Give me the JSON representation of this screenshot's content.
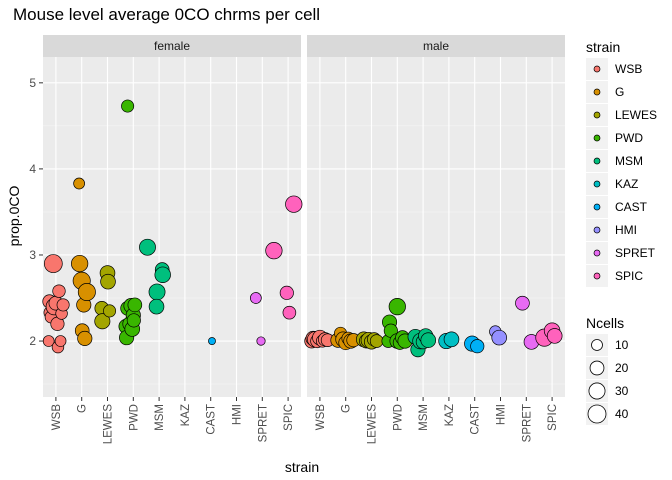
{
  "chart_data": {
    "type": "scatter",
    "title": "Mouse level average 0CO chrms per cell",
    "xlabel": "strain",
    "ylabel": "prop.0CO",
    "categories": [
      "WSB",
      "G",
      "LEWES",
      "PWD",
      "MSM",
      "KAZ",
      "CAST",
      "HMI",
      "SPRET",
      "SPIC"
    ],
    "ylim": [
      1.35,
      5.3
    ],
    "y_ticks": [
      2,
      3,
      4,
      5
    ],
    "grid": true,
    "legend_position": "right",
    "panels": [
      {
        "label": "female",
        "points": [
          {
            "strain": "WSB",
            "dx": -0.28,
            "y": 2.0,
            "n": 10
          },
          {
            "strain": "WSB",
            "dx": -0.25,
            "y": 2.46,
            "n": 18
          },
          {
            "strain": "WSB",
            "dx": -0.22,
            "y": 2.33,
            "n": 15
          },
          {
            "strain": "WSB",
            "dx": -0.18,
            "y": 2.28,
            "n": 14
          },
          {
            "strain": "WSB",
            "dx": -0.1,
            "y": 2.9,
            "n": 40
          },
          {
            "strain": "WSB",
            "dx": -0.06,
            "y": 2.4,
            "n": 32
          },
          {
            "strain": "WSB",
            "dx": 0.0,
            "y": 2.44,
            "n": 20
          },
          {
            "strain": "WSB",
            "dx": 0.06,
            "y": 2.2,
            "n": 18
          },
          {
            "strain": "WSB",
            "dx": 0.08,
            "y": 1.93,
            "n": 12
          },
          {
            "strain": "WSB",
            "dx": 0.12,
            "y": 2.58,
            "n": 15
          },
          {
            "strain": "WSB",
            "dx": 0.18,
            "y": 2.0,
            "n": 10
          },
          {
            "strain": "WSB",
            "dx": 0.22,
            "y": 2.32,
            "n": 12
          },
          {
            "strain": "WSB",
            "dx": 0.28,
            "y": 2.42,
            "n": 14
          },
          {
            "strain": "G",
            "dx": -0.1,
            "y": 3.83,
            "n": 10
          },
          {
            "strain": "G",
            "dx": -0.08,
            "y": 2.9,
            "n": 32
          },
          {
            "strain": "G",
            "dx": 0.0,
            "y": 2.7,
            "n": 36
          },
          {
            "strain": "G",
            "dx": 0.02,
            "y": 2.12,
            "n": 20
          },
          {
            "strain": "G",
            "dx": 0.08,
            "y": 2.42,
            "n": 22
          },
          {
            "strain": "G",
            "dx": 0.12,
            "y": 2.03,
            "n": 22
          },
          {
            "strain": "G",
            "dx": 0.2,
            "y": 2.57,
            "n": 36
          },
          {
            "strain": "LEWES",
            "dx": -0.22,
            "y": 2.38,
            "n": 20
          },
          {
            "strain": "LEWES",
            "dx": -0.2,
            "y": 2.23,
            "n": 26
          },
          {
            "strain": "LEWES",
            "dx": 0.0,
            "y": 2.79,
            "n": 24
          },
          {
            "strain": "LEWES",
            "dx": 0.02,
            "y": 2.69,
            "n": 24
          },
          {
            "strain": "LEWES",
            "dx": 0.08,
            "y": 2.35,
            "n": 14
          },
          {
            "strain": "PWD",
            "dx": -0.22,
            "y": 4.73,
            "n": 14
          },
          {
            "strain": "PWD",
            "dx": -0.28,
            "y": 2.17,
            "n": 22
          },
          {
            "strain": "PWD",
            "dx": -0.26,
            "y": 2.04,
            "n": 22
          },
          {
            "strain": "PWD",
            "dx": -0.22,
            "y": 2.38,
            "n": 20
          },
          {
            "strain": "PWD",
            "dx": -0.12,
            "y": 2.2,
            "n": 24
          },
          {
            "strain": "PWD",
            "dx": -0.08,
            "y": 2.41,
            "n": 24
          },
          {
            "strain": "PWD",
            "dx": -0.04,
            "y": 2.14,
            "n": 24
          },
          {
            "strain": "PWD",
            "dx": 0.0,
            "y": 2.3,
            "n": 22
          },
          {
            "strain": "PWD",
            "dx": 0.02,
            "y": 2.24,
            "n": 18
          },
          {
            "strain": "PWD",
            "dx": 0.06,
            "y": 2.42,
            "n": 20
          },
          {
            "strain": "MSM",
            "dx": -0.45,
            "y": 3.09,
            "n": 30
          },
          {
            "strain": "MSM",
            "dx": -0.08,
            "y": 2.57,
            "n": 30
          },
          {
            "strain": "MSM",
            "dx": -0.1,
            "y": 2.4,
            "n": 24
          },
          {
            "strain": "MSM",
            "dx": 0.12,
            "y": 2.83,
            "n": 20
          },
          {
            "strain": "MSM",
            "dx": 0.14,
            "y": 2.77,
            "n": 28
          },
          {
            "strain": "CAST",
            "dx": 0.05,
            "y": 2.0,
            "n": 2
          },
          {
            "strain": "SPRET",
            "dx": -0.25,
            "y": 2.5,
            "n": 10
          },
          {
            "strain": "SPRET",
            "dx": -0.05,
            "y": 2.0,
            "n": 4
          },
          {
            "strain": "SPIC",
            "dx": -0.55,
            "y": 3.05,
            "n": 32
          },
          {
            "strain": "SPIC",
            "dx": -0.05,
            "y": 2.56,
            "n": 18
          },
          {
            "strain": "SPIC",
            "dx": 0.05,
            "y": 2.33,
            "n": 16
          },
          {
            "strain": "SPIC",
            "dx": 0.22,
            "y": 3.59,
            "n": 32
          }
        ]
      },
      {
        "label": "male",
        "points": [
          {
            "strain": "WSB",
            "dx": -0.32,
            "y": 2.0,
            "n": 20
          },
          {
            "strain": "WSB",
            "dx": -0.26,
            "y": 2.03,
            "n": 22
          },
          {
            "strain": "WSB",
            "dx": -0.18,
            "y": 2.02,
            "n": 28
          },
          {
            "strain": "WSB",
            "dx": -0.1,
            "y": 2.0,
            "n": 18
          },
          {
            "strain": "WSB",
            "dx": 0.0,
            "y": 2.04,
            "n": 24
          },
          {
            "strain": "WSB",
            "dx": 0.1,
            "y": 2.0,
            "n": 14
          },
          {
            "strain": "WSB",
            "dx": 0.2,
            "y": 2.02,
            "n": 18
          },
          {
            "strain": "WSB",
            "dx": 0.3,
            "y": 2.01,
            "n": 16
          },
          {
            "strain": "G",
            "dx": -0.3,
            "y": 2.01,
            "n": 22
          },
          {
            "strain": "G",
            "dx": -0.2,
            "y": 2.09,
            "n": 14
          },
          {
            "strain": "G",
            "dx": -0.1,
            "y": 2.02,
            "n": 24
          },
          {
            "strain": "G",
            "dx": 0.0,
            "y": 1.98,
            "n": 20
          },
          {
            "strain": "G",
            "dx": 0.1,
            "y": 2.03,
            "n": 16
          },
          {
            "strain": "G",
            "dx": 0.2,
            "y": 2.0,
            "n": 22
          },
          {
            "strain": "G",
            "dx": 0.3,
            "y": 2.01,
            "n": 18
          },
          {
            "strain": "LEWES",
            "dx": -0.3,
            "y": 2.02,
            "n": 24
          },
          {
            "strain": "LEWES",
            "dx": -0.2,
            "y": 2.0,
            "n": 20
          },
          {
            "strain": "LEWES",
            "dx": -0.1,
            "y": 2.01,
            "n": 28
          },
          {
            "strain": "LEWES",
            "dx": 0.0,
            "y": 1.99,
            "n": 22
          },
          {
            "strain": "LEWES",
            "dx": 0.1,
            "y": 2.02,
            "n": 18
          },
          {
            "strain": "LEWES",
            "dx": 0.2,
            "y": 2.0,
            "n": 16
          },
          {
            "strain": "PWD",
            "dx": -0.35,
            "y": 2.0,
            "n": 16
          },
          {
            "strain": "PWD",
            "dx": -0.3,
            "y": 2.22,
            "n": 22
          },
          {
            "strain": "PWD",
            "dx": -0.25,
            "y": 2.12,
            "n": 18
          },
          {
            "strain": "PWD",
            "dx": 0.0,
            "y": 2.4,
            "n": 32
          },
          {
            "strain": "PWD",
            "dx": 0.0,
            "y": 2.0,
            "n": 24
          },
          {
            "strain": "PWD",
            "dx": 0.1,
            "y": 1.98,
            "n": 18
          },
          {
            "strain": "PWD",
            "dx": 0.2,
            "y": 2.04,
            "n": 20
          },
          {
            "strain": "PWD",
            "dx": 0.3,
            "y": 2.0,
            "n": 22
          },
          {
            "strain": "MSM",
            "dx": -0.3,
            "y": 2.05,
            "n": 24
          },
          {
            "strain": "MSM",
            "dx": -0.2,
            "y": 1.9,
            "n": 22
          },
          {
            "strain": "MSM",
            "dx": -0.1,
            "y": 2.0,
            "n": 28
          },
          {
            "strain": "MSM",
            "dx": 0.0,
            "y": 1.99,
            "n": 20
          },
          {
            "strain": "MSM",
            "dx": 0.1,
            "y": 2.06,
            "n": 22
          },
          {
            "strain": "MSM",
            "dx": 0.2,
            "y": 2.01,
            "n": 24
          },
          {
            "strain": "KAZ",
            "dx": -0.1,
            "y": 2.0,
            "n": 26
          },
          {
            "strain": "KAZ",
            "dx": 0.1,
            "y": 2.02,
            "n": 24
          },
          {
            "strain": "CAST",
            "dx": -0.1,
            "y": 1.97,
            "n": 26
          },
          {
            "strain": "CAST",
            "dx": 0.1,
            "y": 1.94,
            "n": 18
          },
          {
            "strain": "HMI",
            "dx": -0.2,
            "y": 2.11,
            "n": 12
          },
          {
            "strain": "HMI",
            "dx": -0.05,
            "y": 2.04,
            "n": 24
          },
          {
            "strain": "SPRET",
            "dx": -0.15,
            "y": 2.44,
            "n": 20
          },
          {
            "strain": "SPRET",
            "dx": 0.2,
            "y": 1.99,
            "n": 24
          },
          {
            "strain": "SPIC",
            "dx": -0.3,
            "y": 2.04,
            "n": 36
          },
          {
            "strain": "SPIC",
            "dx": 0.0,
            "y": 2.12,
            "n": 28
          },
          {
            "strain": "SPIC",
            "dx": 0.1,
            "y": 2.06,
            "n": 24
          }
        ]
      }
    ],
    "legend_strain": {
      "title": "strain",
      "items": [
        {
          "label": "WSB",
          "color": "#F8766D"
        },
        {
          "label": "G",
          "color": "#D89000"
        },
        {
          "label": "LEWES",
          "color": "#A3A500"
        },
        {
          "label": "PWD",
          "color": "#39B600"
        },
        {
          "label": "MSM",
          "color": "#00BF7D"
        },
        {
          "label": "KAZ",
          "color": "#00BFC4"
        },
        {
          "label": "CAST",
          "color": "#00B0F6"
        },
        {
          "label": "HMI",
          "color": "#9590FF"
        },
        {
          "label": "SPRET",
          "color": "#E76BF3"
        },
        {
          "label": "SPIC",
          "color": "#FF62BC"
        }
      ]
    },
    "legend_size": {
      "title": "Ncells",
      "items": [
        {
          "label": "10",
          "n": 10
        },
        {
          "label": "20",
          "n": 20
        },
        {
          "label": "30",
          "n": 30
        },
        {
          "label": "40",
          "n": 40
        }
      ]
    }
  }
}
